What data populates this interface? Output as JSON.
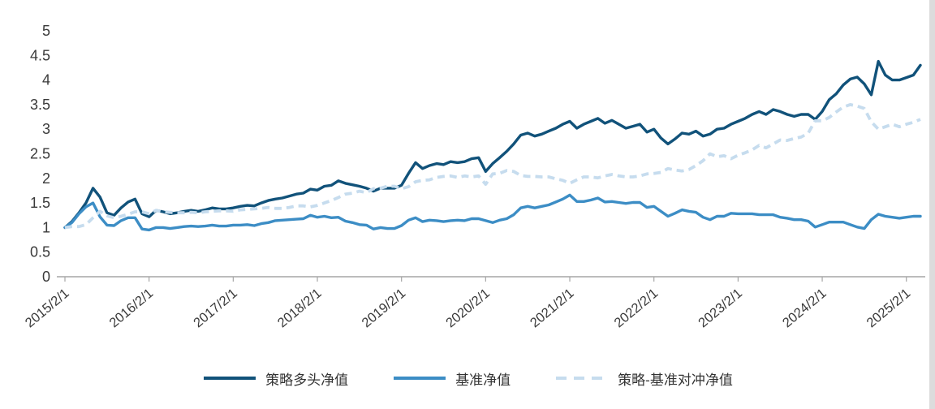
{
  "chart_data": {
    "type": "line",
    "title": "",
    "grid": false,
    "legend_position": "bottom-center",
    "axis_color": "#a6a6a6",
    "text_color": "#3a3a3a",
    "x_axis": {
      "tick_labels": [
        "2015/2/1",
        "2016/2/1",
        "2017/2/1",
        "2018/2/1",
        "2019/2/1",
        "2020/2/1",
        "2021/2/1",
        "2022/2/1",
        "2023/2/1",
        "2024/2/1",
        "2025/2/1"
      ],
      "tick_indices": [
        0,
        12,
        24,
        36,
        48,
        60,
        72,
        84,
        96,
        108,
        120
      ]
    },
    "y_axis": {
      "lim": [
        0,
        5
      ],
      "ticks": [
        0,
        0.5,
        1,
        1.5,
        2,
        2.5,
        3,
        3.5,
        4,
        4.5,
        5
      ],
      "tick_labels": [
        "0",
        "0.5",
        "1",
        "1.5",
        "2",
        "2.5",
        "3",
        "3.5",
        "4",
        "4.5",
        "5"
      ]
    },
    "series": [
      {
        "name": "策略多头净值",
        "color": "#11527a",
        "line_style": "solid",
        "values": [
          1.0,
          1.12,
          1.3,
          1.5,
          1.8,
          1.62,
          1.3,
          1.25,
          1.4,
          1.52,
          1.58,
          1.28,
          1.22,
          1.35,
          1.32,
          1.28,
          1.3,
          1.33,
          1.35,
          1.33,
          1.36,
          1.4,
          1.38,
          1.38,
          1.4,
          1.43,
          1.45,
          1.44,
          1.5,
          1.55,
          1.58,
          1.6,
          1.64,
          1.68,
          1.7,
          1.78,
          1.76,
          1.84,
          1.86,
          1.95,
          1.9,
          1.87,
          1.84,
          1.8,
          1.74,
          1.8,
          1.8,
          1.8,
          1.86,
          2.1,
          2.32,
          2.2,
          2.26,
          2.3,
          2.28,
          2.34,
          2.32,
          2.34,
          2.4,
          2.42,
          2.14,
          2.3,
          2.42,
          2.55,
          2.7,
          2.88,
          2.92,
          2.86,
          2.9,
          2.96,
          3.02,
          3.1,
          3.16,
          3.02,
          3.1,
          3.16,
          3.22,
          3.12,
          3.18,
          3.1,
          3.02,
          3.06,
          3.1,
          2.94,
          3.0,
          2.82,
          2.7,
          2.8,
          2.92,
          2.9,
          2.96,
          2.86,
          2.9,
          3.0,
          3.02,
          3.1,
          3.16,
          3.22,
          3.3,
          3.36,
          3.3,
          3.4,
          3.36,
          3.3,
          3.26,
          3.3,
          3.3,
          3.2,
          3.36,
          3.6,
          3.72,
          3.9,
          4.02,
          4.06,
          3.92,
          3.7,
          4.38,
          4.1,
          4.0,
          4.0,
          4.05,
          4.1,
          4.3
        ]
      },
      {
        "name": "基准净值",
        "color": "#3c8dc5",
        "line_style": "solid",
        "values": [
          1.0,
          1.1,
          1.28,
          1.42,
          1.5,
          1.22,
          1.05,
          1.04,
          1.14,
          1.2,
          1.2,
          0.97,
          0.95,
          1.0,
          1.0,
          0.98,
          1.0,
          1.02,
          1.03,
          1.02,
          1.03,
          1.05,
          1.03,
          1.03,
          1.05,
          1.05,
          1.06,
          1.04,
          1.08,
          1.1,
          1.14,
          1.15,
          1.16,
          1.17,
          1.18,
          1.25,
          1.21,
          1.23,
          1.2,
          1.21,
          1.13,
          1.1,
          1.06,
          1.05,
          0.97,
          1.0,
          0.98,
          0.98,
          1.04,
          1.15,
          1.2,
          1.12,
          1.15,
          1.14,
          1.12,
          1.14,
          1.15,
          1.14,
          1.18,
          1.18,
          1.14,
          1.1,
          1.15,
          1.18,
          1.26,
          1.4,
          1.43,
          1.4,
          1.43,
          1.46,
          1.52,
          1.58,
          1.66,
          1.53,
          1.53,
          1.56,
          1.6,
          1.52,
          1.53,
          1.51,
          1.49,
          1.51,
          1.51,
          1.41,
          1.43,
          1.33,
          1.23,
          1.29,
          1.36,
          1.33,
          1.31,
          1.21,
          1.16,
          1.23,
          1.23,
          1.29,
          1.28,
          1.28,
          1.28,
          1.26,
          1.26,
          1.26,
          1.21,
          1.19,
          1.16,
          1.16,
          1.13,
          1.01,
          1.06,
          1.11,
          1.11,
          1.11,
          1.06,
          1.01,
          0.98,
          1.16,
          1.27,
          1.23,
          1.21,
          1.19,
          1.21,
          1.23,
          1.23
        ]
      },
      {
        "name": "策略-基准对冲净值",
        "color": "#c6dcee",
        "line_style": "dashed",
        "values": [
          1.0,
          1.02,
          1.02,
          1.06,
          1.2,
          1.33,
          1.24,
          1.2,
          1.23,
          1.27,
          1.32,
          1.32,
          1.28,
          1.35,
          1.32,
          1.31,
          1.3,
          1.3,
          1.31,
          1.3,
          1.32,
          1.33,
          1.34,
          1.34,
          1.33,
          1.36,
          1.37,
          1.38,
          1.39,
          1.41,
          1.39,
          1.39,
          1.41,
          1.44,
          1.44,
          1.42,
          1.45,
          1.5,
          1.55,
          1.61,
          1.68,
          1.7,
          1.74,
          1.71,
          1.79,
          1.8,
          1.84,
          1.84,
          1.79,
          1.83,
          1.93,
          1.96,
          1.97,
          2.02,
          2.04,
          2.05,
          2.02,
          2.05,
          2.03,
          2.05,
          1.88,
          2.09,
          2.1,
          2.16,
          2.14,
          2.06,
          2.04,
          2.04,
          2.03,
          2.03,
          1.99,
          1.96,
          1.9,
          1.97,
          2.03,
          2.03,
          2.01,
          2.05,
          2.08,
          2.05,
          2.03,
          2.03,
          2.05,
          2.09,
          2.1,
          2.12,
          2.2,
          2.17,
          2.15,
          2.18,
          2.26,
          2.36,
          2.5,
          2.44,
          2.46,
          2.4,
          2.47,
          2.52,
          2.58,
          2.67,
          2.62,
          2.7,
          2.78,
          2.77,
          2.81,
          2.84,
          2.92,
          3.17,
          3.17,
          3.24,
          3.35,
          3.45,
          3.5,
          3.47,
          3.42,
          3.15,
          3.0,
          3.05,
          3.1,
          3.05,
          3.1,
          3.14,
          3.2
        ]
      }
    ]
  }
}
